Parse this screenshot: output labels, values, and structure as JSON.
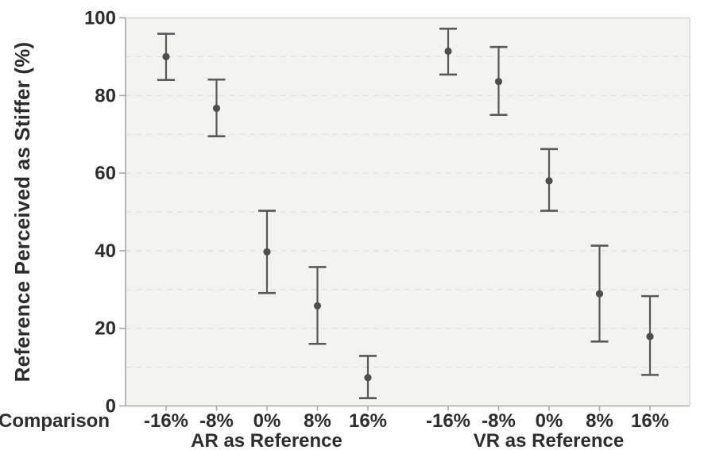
{
  "chart_data": {
    "type": "scatter",
    "subtype": "point-with-error-bars",
    "title": "",
    "ylabel": "Reference Perceived as Stiffer (%)",
    "x_axis_row_label": "Comparison",
    "ylim": [
      0,
      100
    ],
    "yticks": [
      0,
      20,
      40,
      60,
      80,
      100
    ],
    "ytick_labels": [
      "0",
      "20",
      "40",
      "60",
      "80",
      "100"
    ],
    "grid": {
      "horizontal": true,
      "style": "dashed",
      "interval": 10,
      "minor_lines_at": [
        10,
        20,
        30,
        40,
        50,
        60,
        70,
        80,
        90
      ]
    },
    "legend": "none",
    "categories": [
      "-16%",
      "-8%",
      "0%",
      "8%",
      "16%"
    ],
    "groups": [
      {
        "label": "AR as Reference",
        "categories": [
          "-16%",
          "-8%",
          "0%",
          "8%",
          "16%"
        ],
        "points": [
          {
            "x": "-16%",
            "mean": 90.0,
            "ci_low": 84.0,
            "ci_high": 95.9
          },
          {
            "x": "-8%",
            "mean": 76.7,
            "ci_low": 69.5,
            "ci_high": 84.1
          },
          {
            "x": "0%",
            "mean": 39.7,
            "ci_low": 29.1,
            "ci_high": 50.3
          },
          {
            "x": "8%",
            "mean": 25.8,
            "ci_low": 16.0,
            "ci_high": 35.8
          },
          {
            "x": "16%",
            "mean": 7.3,
            "ci_low": 2.0,
            "ci_high": 12.9
          }
        ]
      },
      {
        "label": "VR as Reference",
        "categories": [
          "-16%",
          "-8%",
          "0%",
          "8%",
          "16%"
        ],
        "points": [
          {
            "x": "-16%",
            "mean": 91.4,
            "ci_low": 85.4,
            "ci_high": 97.2
          },
          {
            "x": "-8%",
            "mean": 83.6,
            "ci_low": 75.0,
            "ci_high": 92.5
          },
          {
            "x": "0%",
            "mean": 58.0,
            "ci_low": 50.3,
            "ci_high": 66.2
          },
          {
            "x": "8%",
            "mean": 28.9,
            "ci_low": 16.6,
            "ci_high": 41.3
          },
          {
            "x": "16%",
            "mean": 17.9,
            "ci_low": 8.0,
            "ci_high": 28.3
          }
        ]
      }
    ],
    "colors": {
      "background": "#ffffff",
      "plot_background": "#f3f3f1",
      "plot_border": "#d8d8d4",
      "axis_line": "#a8a8a4",
      "gridline": "#e3e3df",
      "marker": "#4e4e4e",
      "error_bar": "#585858",
      "text": "#2d2d2d"
    }
  }
}
